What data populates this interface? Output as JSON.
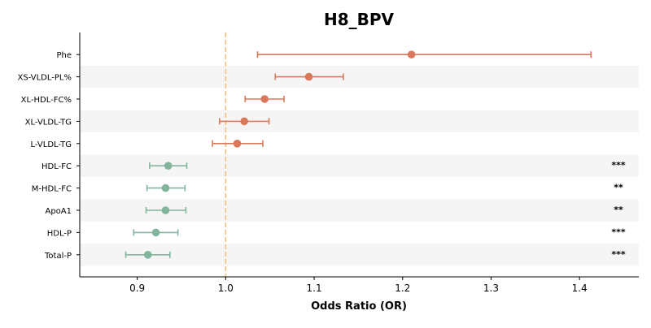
{
  "chart_data": {
    "type": "forest",
    "title": "H8_BPV",
    "xlabel": "Odds Ratio (OR)",
    "ylabel": "",
    "xlim": [
      0.835,
      1.467
    ],
    "x_ticks": [
      0.9,
      1.0,
      1.1,
      1.2,
      1.3,
      1.4
    ],
    "reference_line": 1.0,
    "reference_color": "#f0c27f",
    "colors": {
      "positive": "#d9785b",
      "negative": "#82b59b"
    },
    "rows": [
      {
        "label": "Phe",
        "or": 1.21,
        "lo": 1.036,
        "hi": 1.413,
        "sig": "",
        "color": "#d9785b"
      },
      {
        "label": "XS-VLDL-PL%",
        "or": 1.094,
        "lo": 1.056,
        "hi": 1.133,
        "sig": "",
        "color": "#d9785b"
      },
      {
        "label": "XL-HDL-FC%",
        "or": 1.044,
        "lo": 1.022,
        "hi": 1.066,
        "sig": "",
        "color": "#d9785b"
      },
      {
        "label": "XL-VLDL-TG",
        "or": 1.021,
        "lo": 0.993,
        "hi": 1.049,
        "sig": "",
        "color": "#d9785b"
      },
      {
        "label": "L-VLDL-TG",
        "or": 1.013,
        "lo": 0.985,
        "hi": 1.042,
        "sig": "",
        "color": "#d9785b"
      },
      {
        "label": "HDL-FC",
        "or": 0.935,
        "lo": 0.914,
        "hi": 0.956,
        "sig": "***",
        "color": "#82b59b"
      },
      {
        "label": "M-HDL-FC",
        "or": 0.932,
        "lo": 0.911,
        "hi": 0.954,
        "sig": "**",
        "color": "#82b59b"
      },
      {
        "label": "ApoA1",
        "or": 0.932,
        "lo": 0.91,
        "hi": 0.955,
        "sig": "**",
        "color": "#82b59b"
      },
      {
        "label": "HDL-P",
        "or": 0.921,
        "lo": 0.896,
        "hi": 0.946,
        "sig": "***",
        "color": "#82b59b"
      },
      {
        "label": "Total-P",
        "or": 0.912,
        "lo": 0.887,
        "hi": 0.937,
        "sig": "***",
        "color": "#82b59b"
      }
    ]
  }
}
